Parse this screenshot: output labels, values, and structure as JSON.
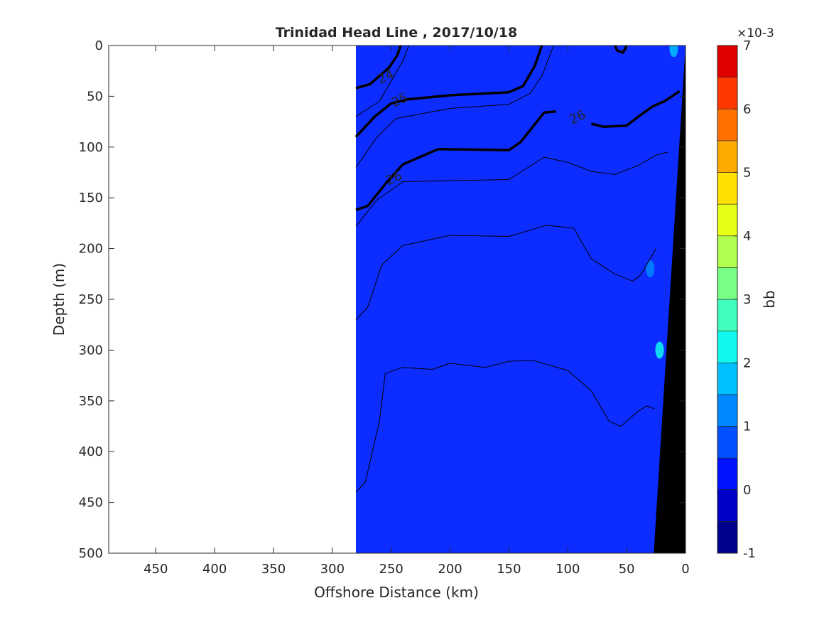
{
  "chart_data": {
    "type": "contour",
    "title": "Trinidad Head Line , 2017/10/18",
    "xlabel": "Offshore Distance (km)",
    "ylabel": "Depth (m)",
    "xlim": [
      490,
      0
    ],
    "ylim": [
      0,
      500
    ],
    "x_reversed": true,
    "y_reversed": true,
    "x_ticks": [
      450,
      400,
      350,
      300,
      250,
      200,
      150,
      100,
      50,
      0
    ],
    "y_ticks": [
      0,
      50,
      100,
      150,
      200,
      250,
      300,
      350,
      400,
      450,
      500
    ],
    "data_extent_x": [
      280,
      0
    ],
    "field_color": "#0d2cff",
    "bottom_color": "#000000",
    "colorbar": {
      "label": "bb",
      "exponent_label": "×10-3",
      "ticks": [
        -1,
        0,
        1,
        2,
        3,
        4,
        5,
        6,
        7
      ],
      "levels": [
        -1,
        -0.5,
        0,
        0.5,
        1,
        1.5,
        2,
        2.5,
        3,
        3.5,
        4,
        4.5,
        5,
        5.5,
        6,
        6.5,
        7
      ],
      "colors": [
        "#00008f",
        "#0000c8",
        "#0012ff",
        "#0050ff",
        "#0088ff",
        "#00c0ff",
        "#10f8ee",
        "#40ffbc",
        "#78ff86",
        "#b0ff4e",
        "#e8ff18",
        "#ffe000",
        "#ffaa00",
        "#ff7000",
        "#ff3800",
        "#e00000",
        "#a80000"
      ]
    },
    "bottom_profile": [
      [
        0,
        0
      ],
      [
        27,
        500
      ],
      [
        0,
        500
      ]
    ],
    "highlights": [
      {
        "x": 22,
        "y": 300,
        "color": "#10f8ee"
      },
      {
        "x": 30,
        "y": 220,
        "color": "#0088ff"
      },
      {
        "x": 10,
        "y": 3,
        "color": "#00c0ff"
      }
    ],
    "contours": [
      {
        "level": 24,
        "bold": true,
        "label": "24",
        "label_at": [
          255,
          30
        ],
        "points": [
          [
            280,
            42
          ],
          [
            268,
            38
          ],
          [
            252,
            22
          ],
          [
            245,
            10
          ],
          [
            242,
            0
          ]
        ]
      },
      {
        "level": 24,
        "bold": true,
        "points": [
          [
            60,
            0
          ],
          [
            58,
            5
          ],
          [
            53,
            7
          ],
          [
            50,
            0
          ]
        ]
      },
      {
        "level": 24.5,
        "bold": false,
        "points": [
          [
            280,
            70
          ],
          [
            260,
            55
          ],
          [
            250,
            35
          ],
          [
            240,
            15
          ],
          [
            235,
            0
          ]
        ]
      },
      {
        "level": 25,
        "bold": true,
        "label": "25",
        "label_at": [
          243,
          53
        ],
        "points": [
          [
            280,
            90
          ],
          [
            264,
            70
          ],
          [
            250,
            57
          ],
          [
            236,
            53
          ],
          [
            200,
            49
          ],
          [
            150,
            46
          ],
          [
            138,
            40
          ],
          [
            128,
            20
          ],
          [
            122,
            0
          ]
        ]
      },
      {
        "level": 25.5,
        "bold": false,
        "points": [
          [
            280,
            120
          ],
          [
            262,
            90
          ],
          [
            246,
            72
          ],
          [
            200,
            62
          ],
          [
            150,
            58
          ],
          [
            132,
            47
          ],
          [
            122,
            30
          ],
          [
            112,
            0
          ]
        ]
      },
      {
        "level": 26,
        "bold": true,
        "label": "26",
        "label_at": [
          248,
          130
        ],
        "points": [
          [
            280,
            162
          ],
          [
            270,
            158
          ],
          [
            254,
            135
          ],
          [
            240,
            117
          ],
          [
            210,
            102
          ],
          [
            150,
            103
          ],
          [
            140,
            95
          ],
          [
            120,
            66
          ],
          [
            110,
            65
          ]
        ]
      },
      {
        "level": 26,
        "bold": true,
        "label": "26",
        "label_at": [
          92,
          70
        ],
        "points": [
          [
            80,
            77
          ],
          [
            70,
            80
          ],
          [
            50,
            79
          ],
          [
            40,
            70
          ],
          [
            28,
            60
          ],
          [
            18,
            55
          ],
          [
            5,
            45
          ]
        ]
      },
      {
        "level": 26.2,
        "bold": false,
        "points": [
          [
            280,
            178
          ],
          [
            262,
            152
          ],
          [
            240,
            134
          ],
          [
            150,
            132
          ],
          [
            120,
            110
          ],
          [
            100,
            115
          ],
          [
            80,
            124
          ],
          [
            60,
            127
          ],
          [
            40,
            118
          ],
          [
            25,
            108
          ],
          [
            15,
            105
          ]
        ]
      },
      {
        "level": 26.4,
        "bold": false,
        "points": [
          [
            280,
            270
          ],
          [
            270,
            258
          ],
          [
            258,
            216
          ],
          [
            240,
            197
          ],
          [
            200,
            187
          ],
          [
            150,
            188
          ],
          [
            118,
            177
          ],
          [
            95,
            180
          ],
          [
            80,
            210
          ],
          [
            60,
            225
          ],
          [
            45,
            232
          ],
          [
            38,
            226
          ],
          [
            30,
            210
          ],
          [
            25,
            200
          ]
        ]
      },
      {
        "level": 26.6,
        "bold": false,
        "points": [
          [
            280,
            440
          ],
          [
            272,
            430
          ],
          [
            260,
            370
          ],
          [
            255,
            323
          ],
          [
            240,
            317
          ],
          [
            215,
            319
          ],
          [
            200,
            313
          ],
          [
            170,
            317
          ],
          [
            150,
            311
          ],
          [
            130,
            310
          ],
          [
            100,
            320
          ],
          [
            80,
            340
          ],
          [
            65,
            370
          ],
          [
            55,
            375
          ],
          [
            40,
            360
          ],
          [
            33,
            355
          ],
          [
            26,
            358
          ]
        ]
      }
    ]
  }
}
